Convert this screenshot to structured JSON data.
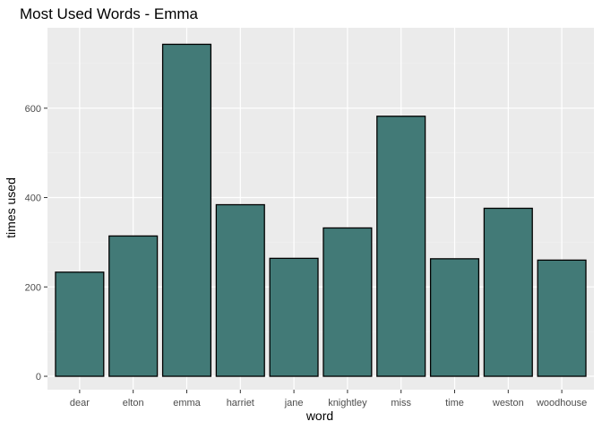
{
  "chart_data": {
    "type": "bar",
    "title": "Most Used Words - Emma",
    "xlabel": "word",
    "ylabel": "times used",
    "categories": [
      "dear",
      "elton",
      "emma",
      "harriet",
      "jane",
      "knightley",
      "miss",
      "time",
      "weston",
      "woodhouse"
    ],
    "values": [
      233,
      314,
      743,
      384,
      264,
      332,
      582,
      263,
      376,
      260
    ],
    "ylim": [
      -30,
      780
    ],
    "yticks": [
      0,
      200,
      400,
      600
    ],
    "ytick_labels": [
      "0",
      "200",
      "400",
      "600"
    ],
    "grid": true,
    "legend": "none",
    "colors": {
      "bar_fill": "#427a77",
      "bar_stroke": "#000000",
      "panel_bg": "#ebebeb",
      "grid_major": "#ffffff",
      "grid_minor": "#f2f2f2",
      "tick_label": "#4d4d4d",
      "tick_mark": "#333333"
    }
  }
}
